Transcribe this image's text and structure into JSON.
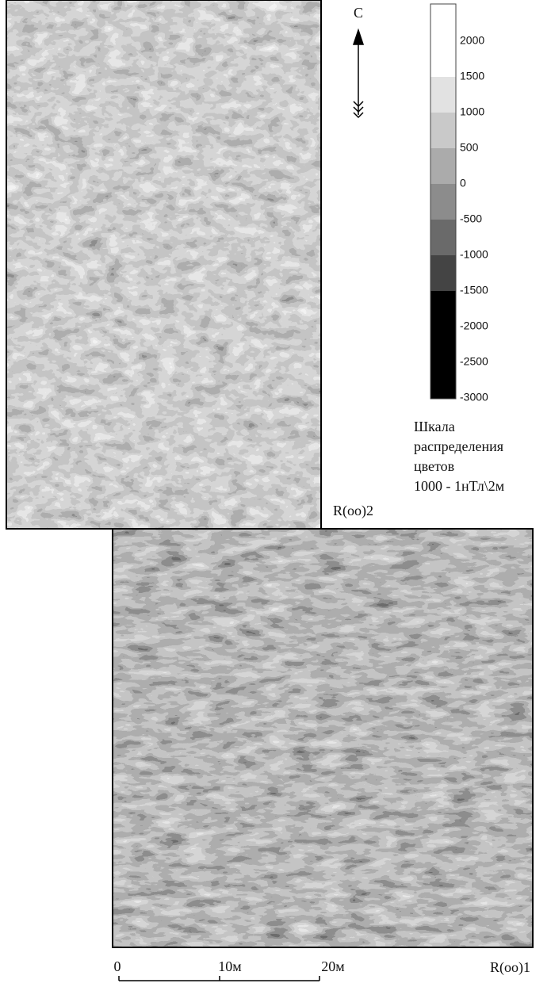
{
  "north": {
    "label": "С"
  },
  "legend": {
    "ticks": [
      "2000",
      "1500",
      "1000",
      "500",
      "0",
      "-500",
      "-1000",
      "-1500",
      "-2000",
      "-2500",
      "-3000"
    ],
    "bands": [
      "#ffffff",
      "#e2e2e2",
      "#c9c9c9",
      "#ababab",
      "#8c8c8c",
      "#6a6a6a",
      "#444444",
      "#000000"
    ],
    "caption": [
      "Шкала",
      "распределения",
      "цветов",
      "1000 - 1нТл\\2м"
    ]
  },
  "plots": [
    {
      "label": "R(оо)2"
    },
    {
      "label": "R(оо)1"
    }
  ],
  "scale": {
    "ticks": [
      "0",
      "10м",
      "20м"
    ]
  }
}
